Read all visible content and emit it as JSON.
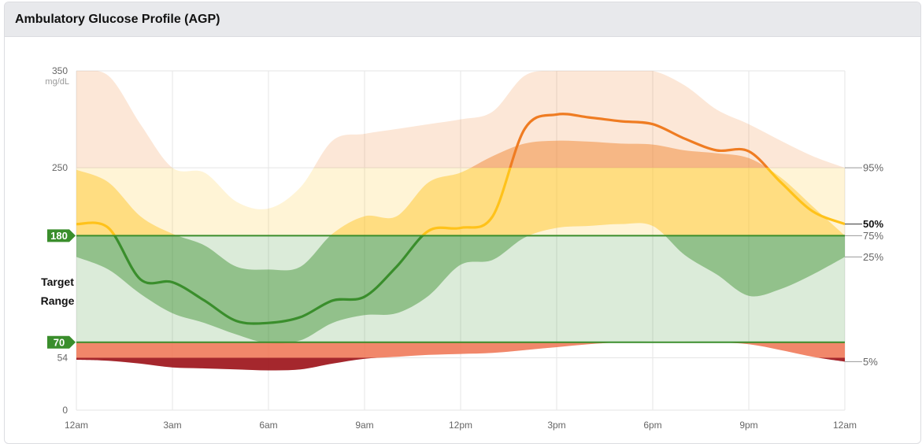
{
  "header": {
    "title": "Ambulatory Glucose Profile (AGP)"
  },
  "chart_data": {
    "type": "area",
    "title": "Ambulatory Glucose Profile (AGP)",
    "x_unit": "hours",
    "x_ticks": [
      {
        "hour": 0,
        "label": "12am"
      },
      {
        "hour": 3,
        "label": "3am"
      },
      {
        "hour": 6,
        "label": "6am"
      },
      {
        "hour": 9,
        "label": "9am"
      },
      {
        "hour": 12,
        "label": "12pm"
      },
      {
        "hour": 15,
        "label": "3pm"
      },
      {
        "hour": 18,
        "label": "6pm"
      },
      {
        "hour": 21,
        "label": "9pm"
      },
      {
        "hour": 24,
        "label": "12am"
      }
    ],
    "y_unit": "mg/dL",
    "ylim": [
      0,
      350
    ],
    "y_ticks": [
      {
        "value": 0,
        "label": "0"
      },
      {
        "value": 54,
        "label": "54"
      },
      {
        "value": 250,
        "label": "250"
      },
      {
        "value": 350,
        "label": "350"
      }
    ],
    "target_range": {
      "low": 70,
      "high": 180,
      "low_label": "70",
      "high_label": "180",
      "label_line1": "Target",
      "label_line2": "Range"
    },
    "thresholds": {
      "very_low": 54,
      "very_high": 250
    },
    "colors": {
      "very_low": "#a01e24",
      "low": "#ee7555",
      "in_range": "#3a8e2c",
      "high": "#ffc21a",
      "very_high": "#ef7c22",
      "axis_text": "#666666",
      "gridline": "#e5e5e5"
    },
    "percentile_labels": [
      {
        "name": "p95",
        "label": "95%"
      },
      {
        "name": "p75",
        "label": "75%"
      },
      {
        "name": "p50",
        "label": "50%"
      },
      {
        "name": "p25",
        "label": "25%"
      },
      {
        "name": "p5",
        "label": "5%"
      }
    ],
    "series": {
      "hours": [
        0,
        1,
        2,
        3,
        4,
        5,
        6,
        7,
        8,
        9,
        10,
        11,
        12,
        13,
        14,
        15,
        16,
        17,
        18,
        19,
        20,
        21,
        22,
        23,
        24
      ],
      "p5": [
        52,
        51,
        48,
        44,
        43,
        42,
        41,
        42,
        48,
        53,
        55,
        57,
        58,
        59,
        62,
        65,
        68,
        70,
        71,
        71,
        70,
        68,
        62,
        55,
        50
      ],
      "p25": [
        158,
        145,
        120,
        100,
        90,
        78,
        69,
        72,
        90,
        98,
        100,
        118,
        150,
        155,
        178,
        188,
        190,
        192,
        190,
        160,
        140,
        118,
        125,
        140,
        158
      ],
      "p50": [
        192,
        188,
        135,
        132,
        113,
        92,
        90,
        96,
        113,
        117,
        148,
        185,
        188,
        200,
        290,
        305,
        302,
        298,
        295,
        280,
        268,
        267,
        235,
        205,
        192
      ],
      "p75": [
        248,
        235,
        200,
        182,
        170,
        148,
        145,
        148,
        182,
        200,
        200,
        235,
        245,
        262,
        275,
        278,
        277,
        275,
        274,
        268,
        265,
        260,
        240,
        210,
        180
      ],
      "p95": [
        350,
        345,
        295,
        250,
        245,
        215,
        208,
        230,
        278,
        285,
        290,
        295,
        300,
        308,
        345,
        350,
        350,
        350,
        350,
        335,
        310,
        295,
        278,
        262,
        250
      ]
    }
  }
}
